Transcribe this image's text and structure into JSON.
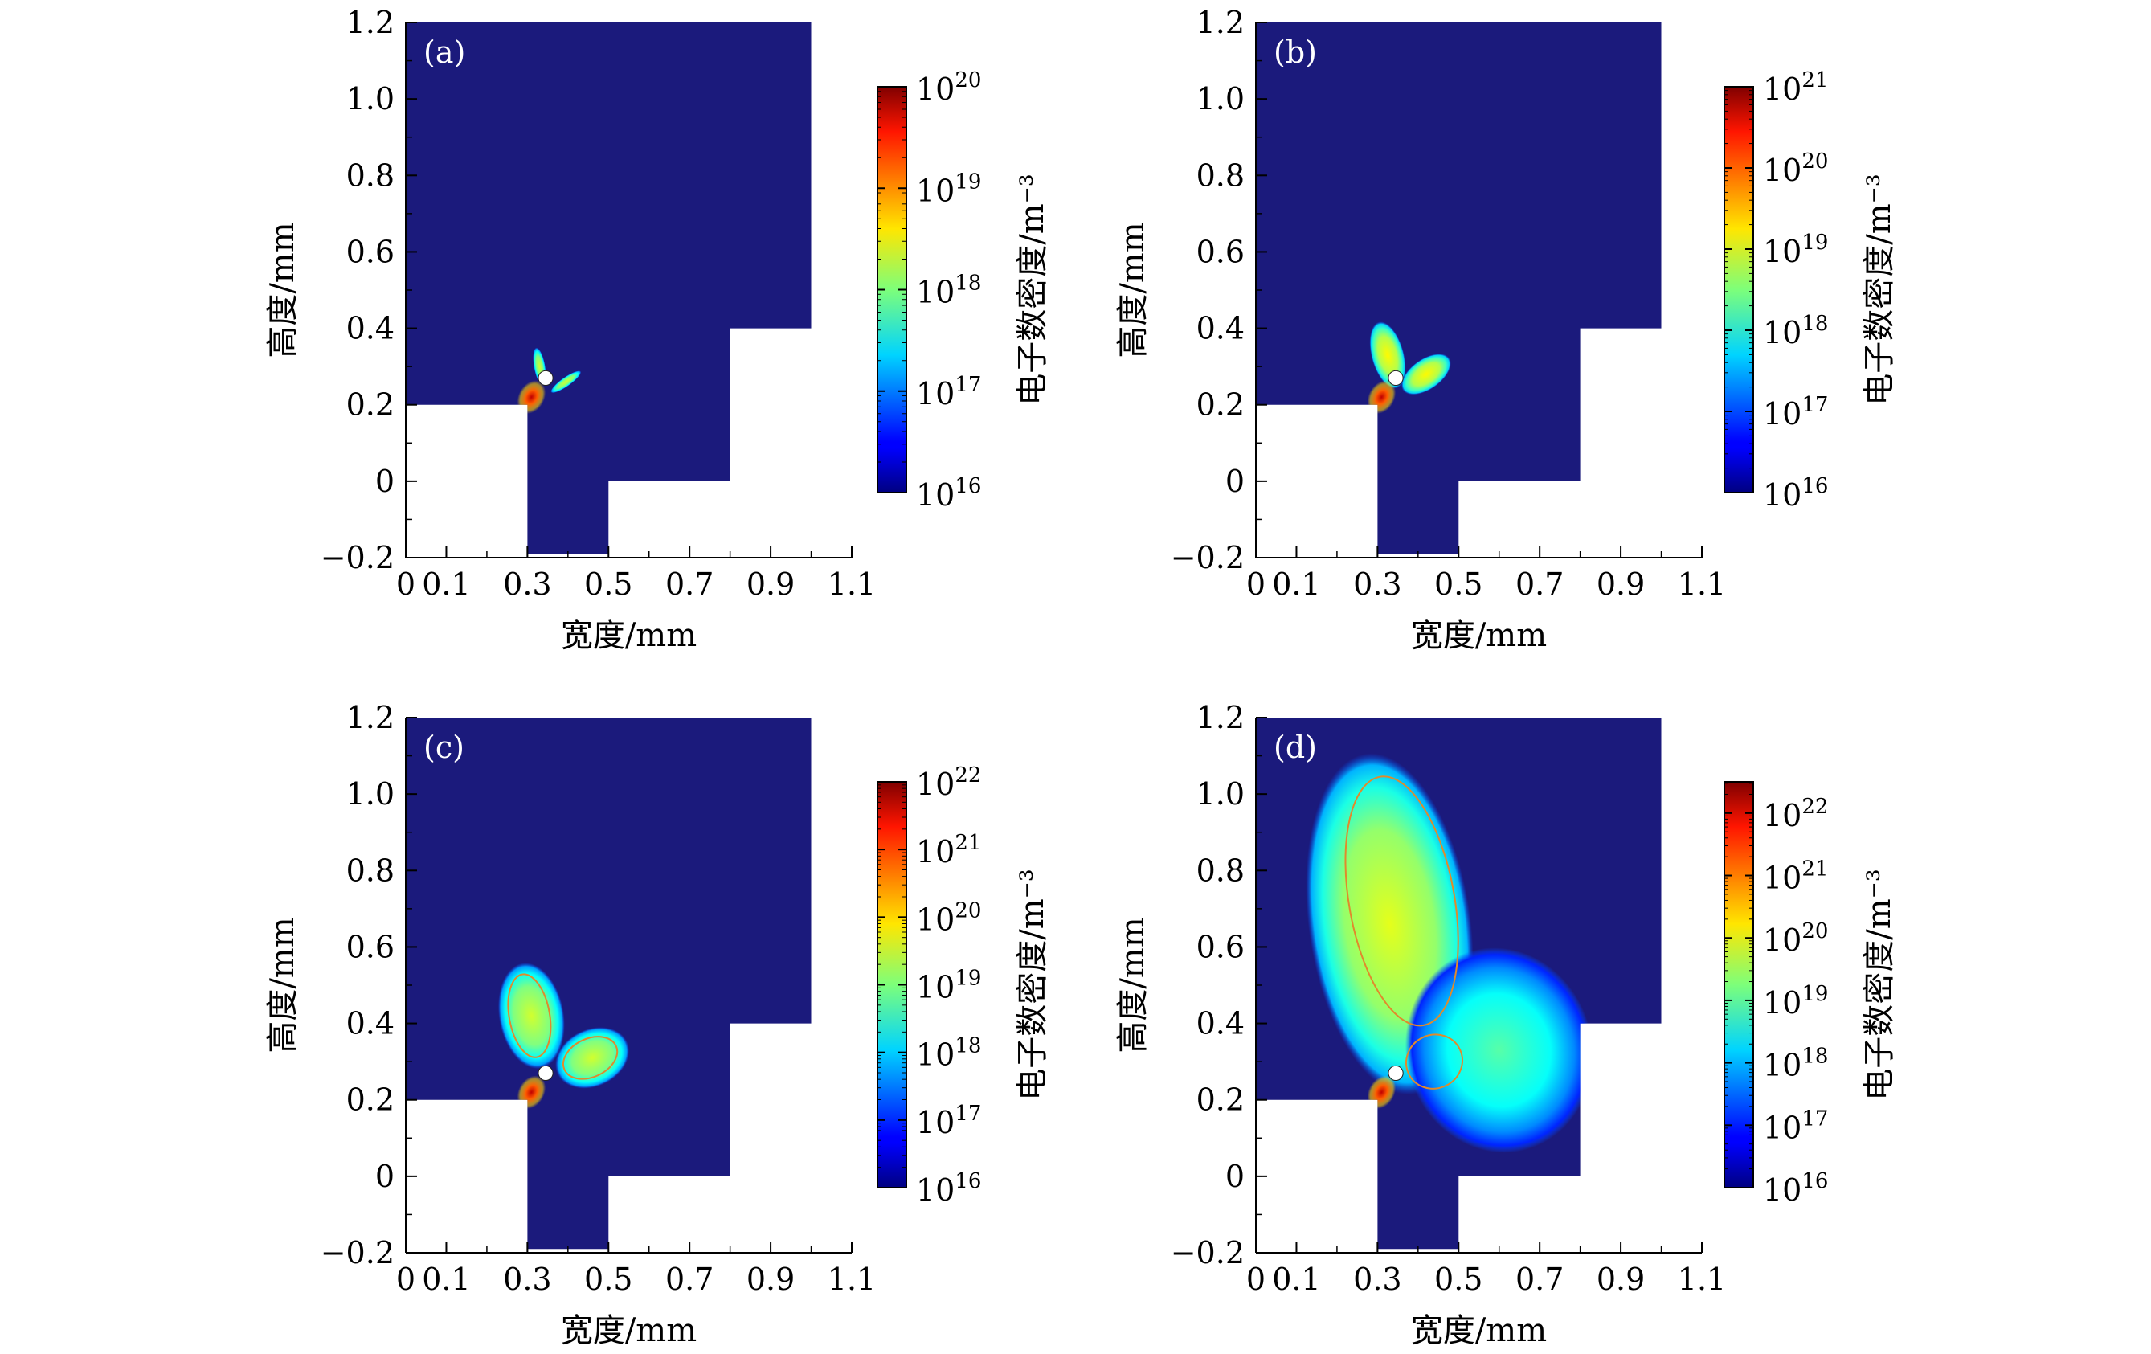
{
  "figure": {
    "background": "#ffffff",
    "domain_color": "#1b1a7c",
    "contour_color": "#e08a2c",
    "electrode_color": "#ffffff"
  },
  "chart_data": [
    {
      "type": "heatmap",
      "panel_label": "(a)",
      "xlabel": "宽度/mm",
      "ylabel": "高度/mm",
      "xlim": [
        0,
        1.1
      ],
      "ylim": [
        -0.2,
        1.2
      ],
      "xticks": [
        0,
        0.1,
        0.3,
        0.5,
        0.7,
        0.9,
        1.1
      ],
      "xtick_labels": [
        "0",
        "0.1",
        "0.3",
        "0.5",
        "0.7",
        "0.9",
        "1.1"
      ],
      "yticks": [
        -0.2,
        0,
        0.2,
        0.4,
        0.6,
        0.8,
        1.0,
        1.2
      ],
      "ytick_labels": [
        "−0.2",
        "0",
        "0.2",
        "0.4",
        "0.6",
        "0.8",
        "1.0",
        "1.2"
      ],
      "colorbar": {
        "label": "电子数密度/m⁻³",
        "scale": "log",
        "min_exp": 16,
        "max_exp": 20,
        "tick_exps": [
          16,
          17,
          18,
          19,
          20
        ],
        "base": "10"
      },
      "domain_outline": [
        [
          0,
          1.2
        ],
        [
          1.0,
          1.2
        ],
        [
          1.0,
          0.4
        ],
        [
          0.8,
          0.4
        ],
        [
          0.8,
          0.0
        ],
        [
          0.5,
          0.0
        ],
        [
          0.5,
          -0.19
        ],
        [
          0.3,
          -0.19
        ],
        [
          0.3,
          0.2
        ],
        [
          0,
          0.2
        ]
      ],
      "electrode": {
        "x": 0.345,
        "y": 0.27,
        "r": 0.018
      },
      "discharge": [
        {
          "x": 0.33,
          "y": 0.3,
          "rx": 0.014,
          "ry": 0.05,
          "rot": -10,
          "level": 0.5
        },
        {
          "x": 0.395,
          "y": 0.26,
          "rx": 0.045,
          "ry": 0.012,
          "rot": -35,
          "level": 0.5
        }
      ],
      "contours": []
    },
    {
      "type": "heatmap",
      "panel_label": "(b)",
      "xlabel": "宽度/mm",
      "ylabel": "高度/mm",
      "xlim": [
        0,
        1.1
      ],
      "ylim": [
        -0.2,
        1.2
      ],
      "xticks": [
        0,
        0.1,
        0.3,
        0.5,
        0.7,
        0.9,
        1.1
      ],
      "xtick_labels": [
        "0",
        "0.1",
        "0.3",
        "0.5",
        "0.7",
        "0.9",
        "1.1"
      ],
      "yticks": [
        -0.2,
        0,
        0.2,
        0.4,
        0.6,
        0.8,
        1.0,
        1.2
      ],
      "ytick_labels": [
        "−0.2",
        "0",
        "0.2",
        "0.4",
        "0.6",
        "0.8",
        "1.0",
        "1.2"
      ],
      "colorbar": {
        "label": "电子数密度/m⁻³",
        "scale": "log",
        "min_exp": 16,
        "max_exp": 21,
        "tick_exps": [
          16,
          17,
          18,
          19,
          20,
          21
        ],
        "base": "10"
      },
      "domain_outline": [
        [
          0,
          1.2
        ],
        [
          1.0,
          1.2
        ],
        [
          1.0,
          0.4
        ],
        [
          0.8,
          0.4
        ],
        [
          0.8,
          0.0
        ],
        [
          0.5,
          0.0
        ],
        [
          0.5,
          -0.19
        ],
        [
          0.3,
          -0.19
        ],
        [
          0.3,
          0.2
        ],
        [
          0,
          0.2
        ]
      ],
      "electrode": {
        "x": 0.345,
        "y": 0.27,
        "r": 0.018
      },
      "discharge": [
        {
          "x": 0.325,
          "y": 0.33,
          "rx": 0.04,
          "ry": 0.09,
          "rot": -15,
          "level": 0.55
        },
        {
          "x": 0.42,
          "y": 0.28,
          "rx": 0.07,
          "ry": 0.04,
          "rot": -35,
          "level": 0.55
        }
      ],
      "contours": []
    },
    {
      "type": "heatmap",
      "panel_label": "(c)",
      "xlabel": "宽度/mm",
      "ylabel": "高度/mm",
      "xlim": [
        0,
        1.1
      ],
      "ylim": [
        -0.2,
        1.2
      ],
      "xticks": [
        0,
        0.1,
        0.3,
        0.5,
        0.7,
        0.9,
        1.1
      ],
      "xtick_labels": [
        "0",
        "0.1",
        "0.3",
        "0.5",
        "0.7",
        "0.9",
        "1.1"
      ],
      "yticks": [
        -0.2,
        0,
        0.2,
        0.4,
        0.6,
        0.8,
        1.0,
        1.2
      ],
      "ytick_labels": [
        "−0.2",
        "0",
        "0.2",
        "0.4",
        "0.6",
        "0.8",
        "1.0",
        "1.2"
      ],
      "colorbar": {
        "label": "电子数密度/m⁻³",
        "scale": "log",
        "min_exp": 16,
        "max_exp": 22,
        "tick_exps": [
          16,
          17,
          18,
          19,
          20,
          21,
          22
        ],
        "base": "10"
      },
      "domain_outline": [
        [
          0,
          1.2
        ],
        [
          1.0,
          1.2
        ],
        [
          1.0,
          0.4
        ],
        [
          0.8,
          0.4
        ],
        [
          0.8,
          0.0
        ],
        [
          0.5,
          0.0
        ],
        [
          0.5,
          -0.19
        ],
        [
          0.3,
          -0.19
        ],
        [
          0.3,
          0.2
        ],
        [
          0,
          0.2
        ]
      ],
      "electrode": {
        "x": 0.345,
        "y": 0.27,
        "r": 0.018
      },
      "discharge": [
        {
          "x": 0.31,
          "y": 0.42,
          "rx": 0.08,
          "ry": 0.14,
          "rot": -10,
          "level": 0.5
        },
        {
          "x": 0.46,
          "y": 0.31,
          "rx": 0.095,
          "ry": 0.075,
          "rot": -25,
          "level": 0.5
        }
      ],
      "contours": [
        {
          "x": 0.305,
          "y": 0.42,
          "rx": 0.05,
          "ry": 0.11,
          "rot": -10
        },
        {
          "x": 0.455,
          "y": 0.31,
          "rx": 0.07,
          "ry": 0.05,
          "rot": -25
        }
      ]
    },
    {
      "type": "heatmap",
      "panel_label": "(d)",
      "xlabel": "宽度/mm",
      "ylabel": "高度/mm",
      "xlim": [
        0,
        1.1
      ],
      "ylim": [
        -0.2,
        1.2
      ],
      "xticks": [
        0,
        0.1,
        0.3,
        0.5,
        0.7,
        0.9,
        1.1
      ],
      "xtick_labels": [
        "0",
        "0.1",
        "0.3",
        "0.5",
        "0.7",
        "0.9",
        "1.1"
      ],
      "yticks": [
        -0.2,
        0,
        0.2,
        0.4,
        0.6,
        0.8,
        1.0,
        1.2
      ],
      "ytick_labels": [
        "−0.2",
        "0",
        "0.2",
        "0.4",
        "0.6",
        "0.8",
        "1.0",
        "1.2"
      ],
      "colorbar": {
        "label": "电子数密度/m⁻³",
        "scale": "log",
        "min_exp": 16,
        "max_exp": 22.5,
        "tick_exps": [
          16,
          17,
          18,
          19,
          20,
          21,
          22
        ],
        "base": "10"
      },
      "domain_outline": [
        [
          0,
          1.2
        ],
        [
          1.0,
          1.2
        ],
        [
          1.0,
          0.4
        ],
        [
          0.8,
          0.4
        ],
        [
          0.8,
          0.0
        ],
        [
          0.5,
          0.0
        ],
        [
          0.5,
          -0.19
        ],
        [
          0.3,
          -0.19
        ],
        [
          0.3,
          0.2
        ],
        [
          0,
          0.2
        ]
      ],
      "electrode": {
        "x": 0.345,
        "y": 0.27,
        "r": 0.018
      },
      "discharge": [
        {
          "x": 0.33,
          "y": 0.66,
          "rx": 0.2,
          "ry": 0.45,
          "rot": -8,
          "level": 0.52
        },
        {
          "x": 0.6,
          "y": 0.33,
          "rx": 0.23,
          "ry": 0.27,
          "rot": -15,
          "level": 0.38
        }
      ],
      "contours": [
        {
          "x": 0.36,
          "y": 0.72,
          "rx": 0.13,
          "ry": 0.33,
          "rot": -10
        },
        {
          "x": 0.44,
          "y": 0.3,
          "rx": 0.07,
          "ry": 0.07,
          "rot": -25
        }
      ]
    }
  ]
}
